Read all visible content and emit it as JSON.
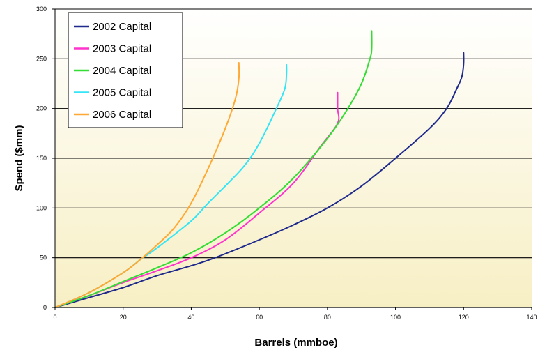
{
  "chart_data": {
    "type": "line",
    "title": "",
    "xlabel": "Barrels (mmboe)",
    "ylabel": "Spend ($mm)",
    "xlim": [
      0,
      140
    ],
    "ylim": [
      0,
      300
    ],
    "xticks": [
      "0",
      "20",
      "40",
      "60",
      "80",
      "100",
      "120",
      "140"
    ],
    "yticks": [
      "0",
      "50",
      "100",
      "150",
      "200",
      "250",
      "300"
    ],
    "grid": "horizontal",
    "legend_position": "top-left",
    "background": "gradient white to pale yellow",
    "series": [
      {
        "name": "2002 Capital",
        "color": "#1f2a8c",
        "x": [
          0,
          10,
          20,
          30,
          40,
          47,
          60,
          70,
          80,
          90,
          100,
          110,
          115,
          118,
          119.5,
          120,
          120
        ],
        "y": [
          0,
          10,
          20,
          32,
          42,
          50,
          68,
          83,
          100,
          122,
          150,
          180,
          200,
          220,
          232,
          245,
          256
        ]
      },
      {
        "name": "2003 Capital",
        "color": "#ff33cc",
        "x": [
          0,
          10,
          20,
          30,
          40,
          50,
          60,
          70,
          78,
          83,
          83,
          83
        ],
        "y": [
          0,
          12,
          25,
          37,
          50,
          68,
          95,
          125,
          162,
          185,
          200,
          216
        ]
      },
      {
        "name": "2004 Capital",
        "color": "#33dd33",
        "x": [
          0,
          10,
          20,
          30,
          40,
          50,
          60,
          70,
          80,
          86,
          90,
          92.5,
          93,
          93
        ],
        "y": [
          0,
          12,
          26,
          40,
          55,
          75,
          100,
          130,
          170,
          200,
          225,
          250,
          260,
          278
        ]
      },
      {
        "name": "2005 Capital",
        "color": "#33e5f5",
        "x": [
          0,
          10,
          20,
          25,
          30,
          40,
          45,
          55,
          60,
          65,
          67.5,
          68,
          68
        ],
        "y": [
          0,
          15,
          35,
          48,
          60,
          87,
          105,
          140,
          165,
          200,
          220,
          235,
          244
        ]
      },
      {
        "name": "2006 Capital",
        "color": "#ffa833",
        "x": [
          0,
          10,
          20,
          25,
          30,
          35,
          40,
          45,
          50,
          53,
          54,
          54
        ],
        "y": [
          0,
          15,
          35,
          48,
          63,
          80,
          105,
          140,
          180,
          210,
          230,
          246
        ]
      }
    ]
  }
}
